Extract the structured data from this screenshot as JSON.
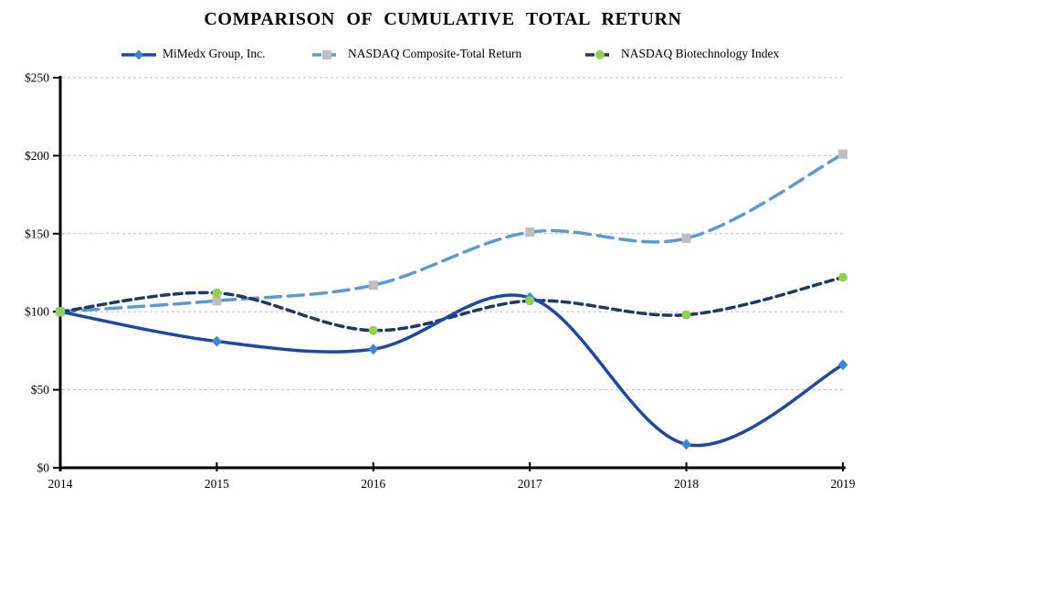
{
  "title": "COMPARISON OF CUMULATIVE TOTAL RETURN",
  "chart_data": {
    "type": "line",
    "title": "COMPARISON OF CUMULATIVE TOTAL RETURN",
    "x": [
      2014,
      2015,
      2016,
      2017,
      2018,
      2019
    ],
    "x_labels": [
      "2014",
      "2015",
      "2016",
      "2017",
      "2018",
      "2019"
    ],
    "xlabel": "",
    "ylabel": "",
    "ylim": [
      0,
      250
    ],
    "y_tick_step": 50,
    "y_tick_prefix": "$",
    "y_tick_labels": [
      "$0",
      "$50",
      "$100",
      "$150",
      "$200",
      "$250"
    ],
    "grid": "horizontal-dashed",
    "legend_position": "top",
    "line_smoothing": "smooth",
    "series": [
      {
        "name": "MiMedx Group, Inc.",
        "values": [
          100,
          81,
          76,
          109,
          15,
          66
        ],
        "line_color": "#1C49A6",
        "marker_color": "#3F86D9",
        "marker": "diamond",
        "line_style": "solid",
        "line_width": 3.5
      },
      {
        "name": "NASDAQ Composite-Total Return",
        "values": [
          100,
          107,
          117,
          151,
          147,
          201
        ],
        "line_color": "#5B9BD5",
        "marker_color": "#BFBFBF",
        "marker": "square",
        "line_style": "long-dash",
        "line_width": 3.5
      },
      {
        "name": "NASDAQ Biotechnology Index",
        "values": [
          100,
          112,
          88,
          107,
          98,
          122
        ],
        "line_color": "#1F3864",
        "marker_color": "#92D050",
        "marker": "circle",
        "line_style": "dash",
        "line_width": 3.5
      }
    ]
  },
  "colors": {
    "axis": "#000000",
    "gridline": "#BFBFBF",
    "background": "#FFFFFF",
    "text": "#000000"
  }
}
